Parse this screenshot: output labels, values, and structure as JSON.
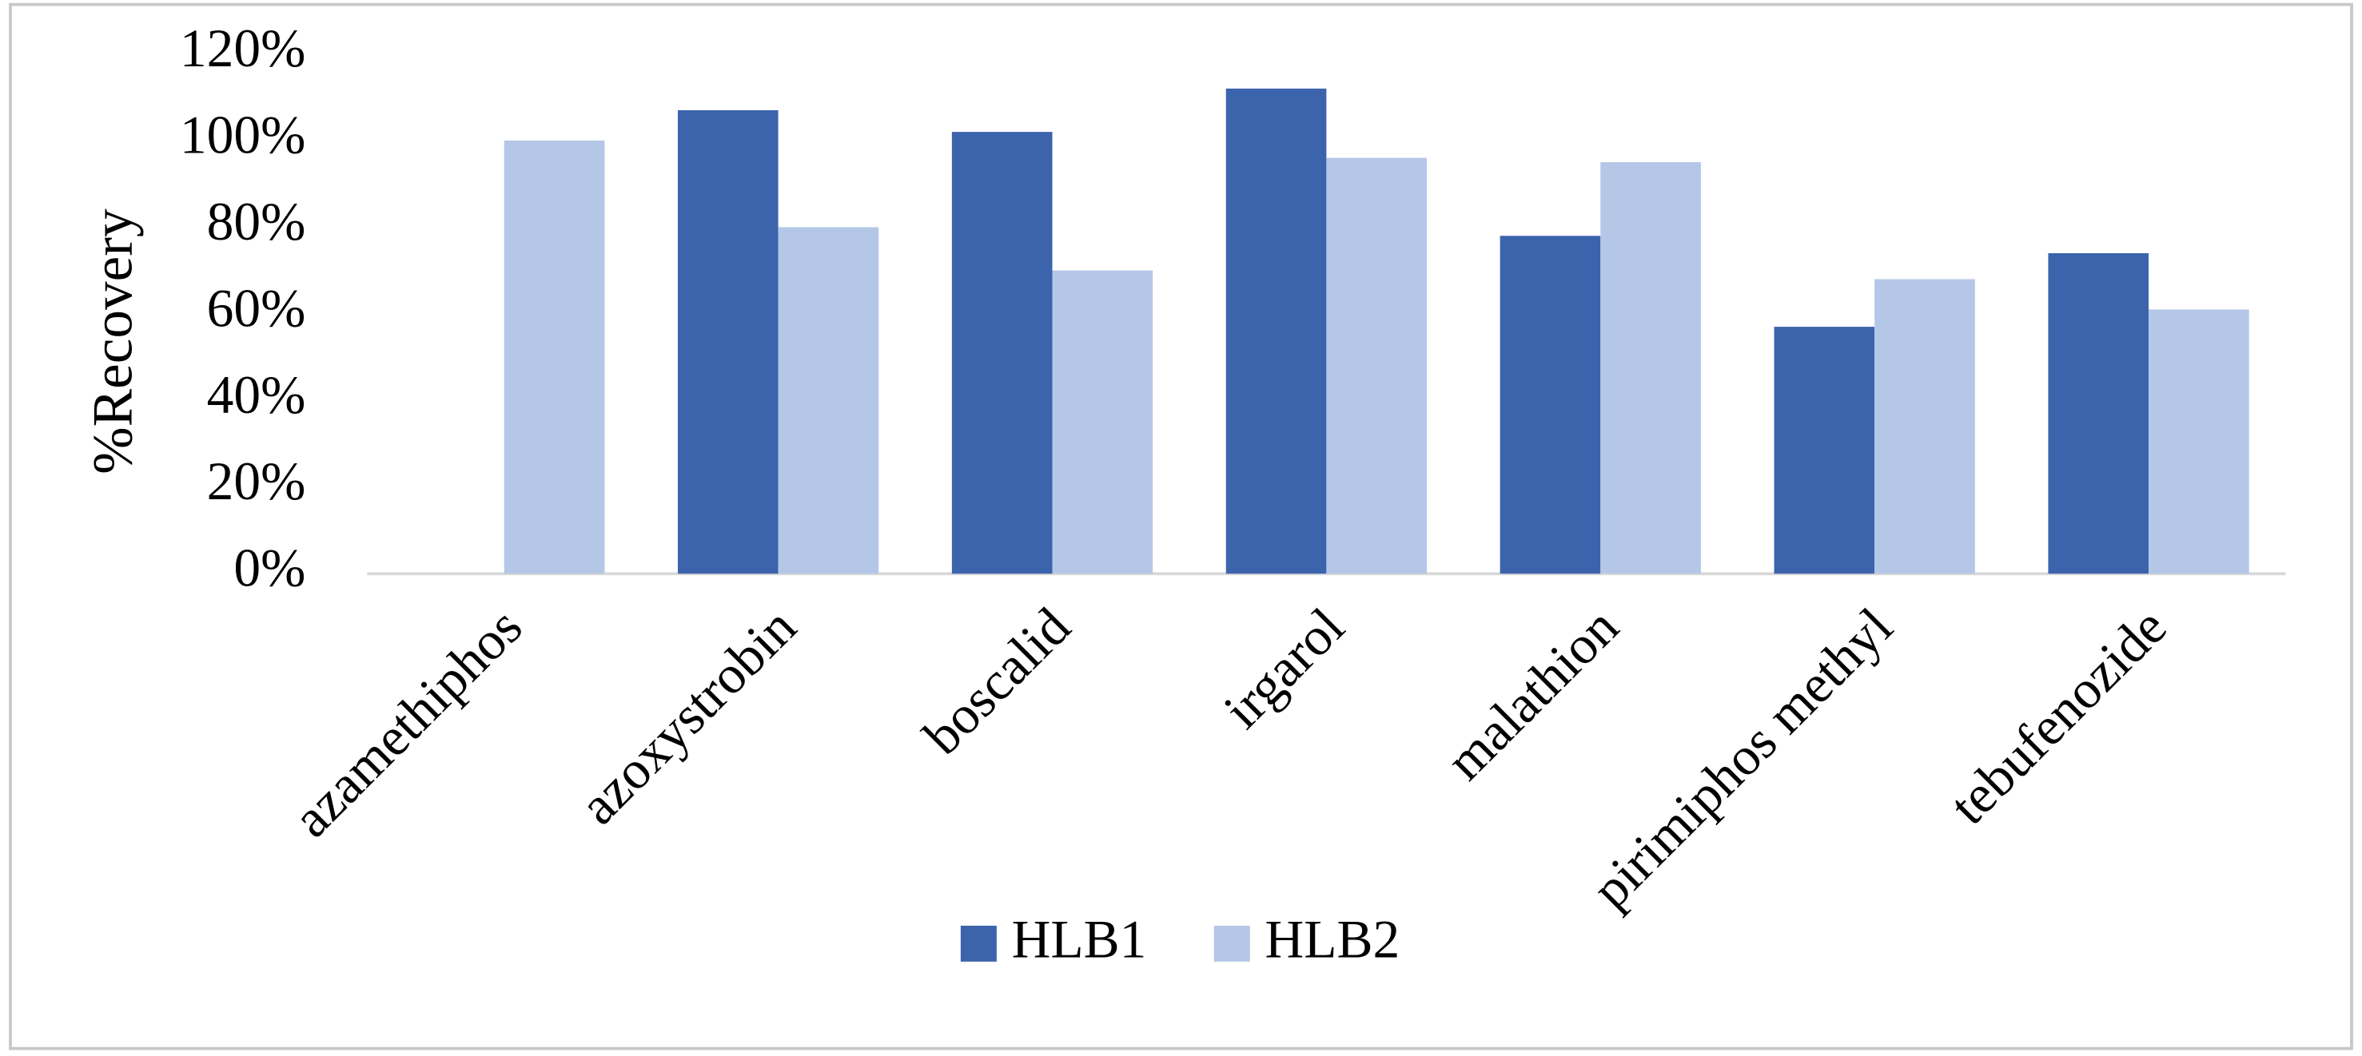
{
  "chart_data": {
    "type": "bar",
    "y_label": "%Recovery",
    "categories": [
      "azamethiphos",
      "azoxystrobin",
      "boscalid",
      "irgarol",
      "malathion",
      "pirimiphos methyl",
      "tebufenozide"
    ],
    "series": [
      {
        "name": "HLB1",
        "color": "#3c64ac",
        "values": [
          null,
          107,
          102,
          112,
          78,
          57,
          74
        ]
      },
      {
        "name": "HLB2",
        "color": "#b4c7e7",
        "values": [
          100,
          80,
          70,
          96,
          95,
          68,
          61
        ]
      }
    ],
    "ylim": [
      0,
      120
    ],
    "yticks": [
      {
        "value": 0,
        "label": "0%"
      },
      {
        "value": 20,
        "label": "20%"
      },
      {
        "value": 40,
        "label": "40%"
      },
      {
        "value": 60,
        "label": "60%"
      },
      {
        "value": 80,
        "label": "80%"
      },
      {
        "value": 100,
        "label": "100%"
      },
      {
        "value": 120,
        "label": "120%"
      }
    ],
    "grid": false,
    "legend": "bottom"
  }
}
